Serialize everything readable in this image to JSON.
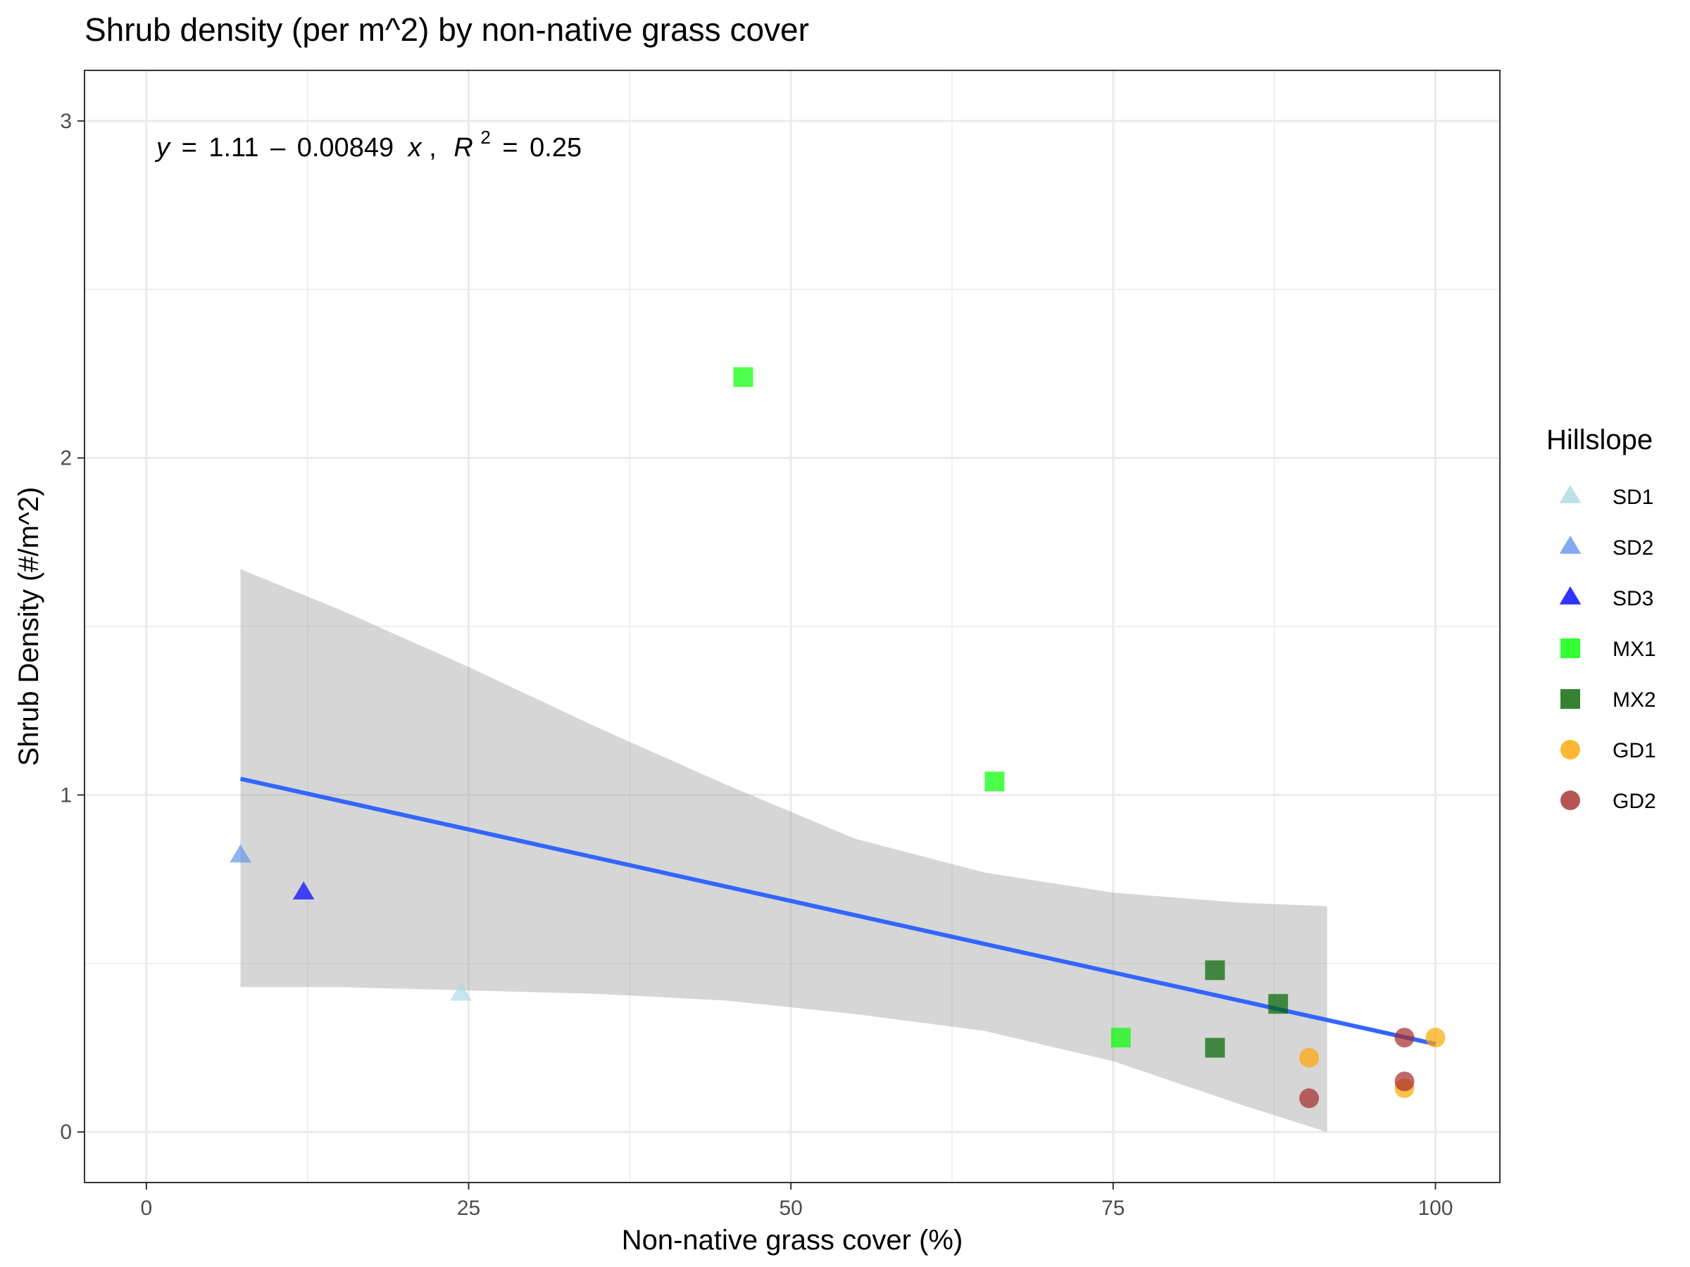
{
  "chart_data": {
    "type": "scatter",
    "title": "Shrub density (per m^2) by non-native grass cover",
    "xlabel": "Non-native grass cover (%)",
    "ylabel": "Shrub Density (#/m^2)",
    "xlim": [
      -4.8,
      105
    ],
    "ylim": [
      -0.15,
      3.15
    ],
    "x_ticks": [
      0,
      25,
      50,
      75,
      100
    ],
    "x_tick_labels": [
      "0",
      "25",
      "50",
      "75",
      "100"
    ],
    "y_ticks": [
      0,
      1,
      2,
      3
    ],
    "y_tick_labels": [
      "0",
      "1",
      "2",
      "3"
    ],
    "grid": true,
    "legend": {
      "title": "Hillslope",
      "position": "right",
      "entries": [
        {
          "label": "SD1",
          "shape": "triangle",
          "color": "#add8e6"
        },
        {
          "label": "SD2",
          "shape": "triangle",
          "color": "#6495ed"
        },
        {
          "label": "SD3",
          "shape": "triangle",
          "color": "#0000ff"
        },
        {
          "label": "MX1",
          "shape": "square",
          "color": "#00ff00"
        },
        {
          "label": "MX2",
          "shape": "square",
          "color": "#006400"
        },
        {
          "label": "GD1",
          "shape": "circle",
          "color": "#ffa500"
        },
        {
          "label": "GD2",
          "shape": "circle",
          "color": "#a52a2a"
        }
      ]
    },
    "series": [
      {
        "name": "SD1",
        "shape": "triangle",
        "color": "#add8e6",
        "points": [
          [
            24.4,
            0.41
          ]
        ]
      },
      {
        "name": "SD2",
        "shape": "triangle",
        "color": "#6495ed",
        "points": [
          [
            7.3,
            0.82
          ]
        ]
      },
      {
        "name": "SD3",
        "shape": "triangle",
        "color": "#0000ff",
        "points": [
          [
            12.2,
            0.71
          ]
        ]
      },
      {
        "name": "MX1",
        "shape": "square",
        "color": "#00ff00",
        "points": [
          [
            46.3,
            2.24
          ],
          [
            65.8,
            1.04
          ],
          [
            75.6,
            0.28
          ]
        ]
      },
      {
        "name": "MX2",
        "shape": "square",
        "color": "#006400",
        "points": [
          [
            82.9,
            0.48
          ],
          [
            87.8,
            0.38
          ],
          [
            82.9,
            0.25
          ]
        ]
      },
      {
        "name": "GD1",
        "shape": "circle",
        "color": "#ffa500",
        "points": [
          [
            100.0,
            0.28
          ],
          [
            90.2,
            0.22
          ],
          [
            97.6,
            0.13
          ]
        ]
      },
      {
        "name": "GD2",
        "shape": "circle",
        "color": "#a52a2a",
        "points": [
          [
            97.6,
            0.28
          ],
          [
            97.6,
            0.15
          ],
          [
            90.2,
            0.1
          ]
        ]
      }
    ],
    "fit": {
      "type": "linear",
      "color": "#3366ff",
      "x_range": [
        7.3,
        100.0
      ],
      "intercept": 1.11,
      "slope": -0.00849,
      "ci_band": {
        "color": "#999999",
        "x": [
          7.3,
          15,
          25,
          35,
          45,
          55,
          65,
          75,
          85,
          91.6
        ],
        "upper": [
          1.67,
          1.55,
          1.38,
          1.2,
          1.03,
          0.87,
          0.77,
          0.71,
          0.68,
          0.67
        ],
        "lower": [
          0.43,
          0.43,
          0.42,
          0.41,
          0.39,
          0.35,
          0.3,
          0.21,
          0.08,
          0.0
        ]
      }
    },
    "annotation": {
      "equation": {
        "y_var": "y",
        "eq_sign": "=",
        "intercept_text": "1.11",
        "minus": "–",
        "slope_text": "0.00849",
        "x_var": "x",
        "comma": ",",
        "r_var": "R",
        "r_sup": "2",
        "r2_text": "0.25"
      }
    }
  }
}
